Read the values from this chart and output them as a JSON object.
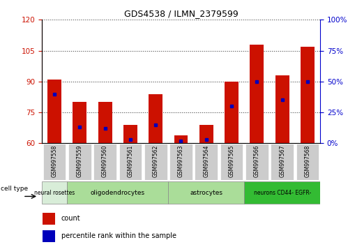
{
  "title": "GDS4538 / ILMN_2379599",
  "samples": [
    "GSM997558",
    "GSM997559",
    "GSM997560",
    "GSM997561",
    "GSM997562",
    "GSM997563",
    "GSM997564",
    "GSM997565",
    "GSM997566",
    "GSM997567",
    "GSM997568"
  ],
  "count_values": [
    91,
    80,
    80,
    69,
    84,
    64,
    69,
    90,
    108,
    93,
    107
  ],
  "percentile_values": [
    40,
    13,
    12,
    3,
    15,
    2,
    3,
    30,
    50,
    35,
    50
  ],
  "ylim_left": [
    60,
    120
  ],
  "ylim_right": [
    0,
    100
  ],
  "yticks_left": [
    60,
    75,
    90,
    105,
    120
  ],
  "yticks_right": [
    0,
    25,
    50,
    75,
    100
  ],
  "bar_color": "#cc1100",
  "dot_color": "#0000bb",
  "grid_color": "#555555",
  "bg_color": "#ffffff",
  "left_axis_color": "#cc1100",
  "right_axis_color": "#0000cc",
  "tick_bg_color": "#c8c8c8",
  "groups": [
    {
      "label": "neural rosettes",
      "start": 0,
      "end": 0,
      "color": "#d8edd8"
    },
    {
      "label": "oligodendrocytes",
      "start": 1,
      "end": 4,
      "color": "#aadd99"
    },
    {
      "label": "astrocytes",
      "start": 5,
      "end": 7,
      "color": "#aadd99"
    },
    {
      "label": "neurons CD44- EGFR-",
      "start": 8,
      "end": 10,
      "color": "#33bb33"
    }
  ]
}
